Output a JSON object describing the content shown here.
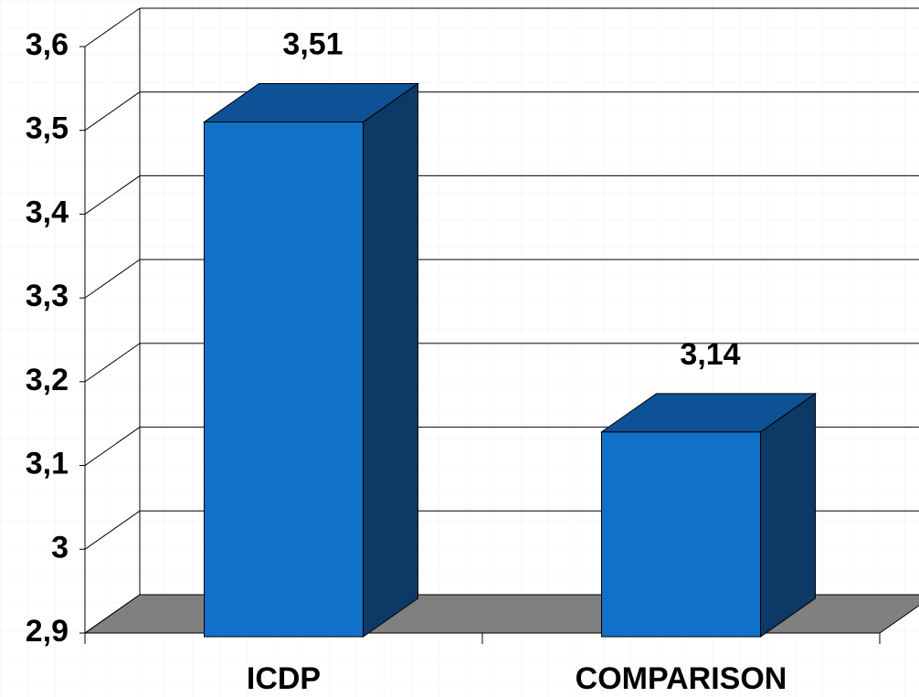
{
  "chart_data": {
    "type": "bar3d",
    "categories": [
      "ICDP",
      "COMPARISON"
    ],
    "values": [
      3.51,
      3.14
    ],
    "value_labels": [
      "3,51",
      "3,14"
    ],
    "color": "#1170c8",
    "ylim": [
      2.9,
      3.6
    ],
    "yticks": [
      {
        "value": 2.9,
        "label": "2,9"
      },
      3,
      {
        "value": 3.1,
        "label": "3,1"
      },
      {
        "value": 3.2,
        "label": "3,2"
      },
      {
        "value": 3.3,
        "label": "3,3"
      },
      {
        "value": 3.4,
        "label": "3,4"
      },
      {
        "value": 3.5,
        "label": "3,5"
      },
      {
        "value": 3.6,
        "label": "3,6"
      }
    ],
    "grid": true
  }
}
